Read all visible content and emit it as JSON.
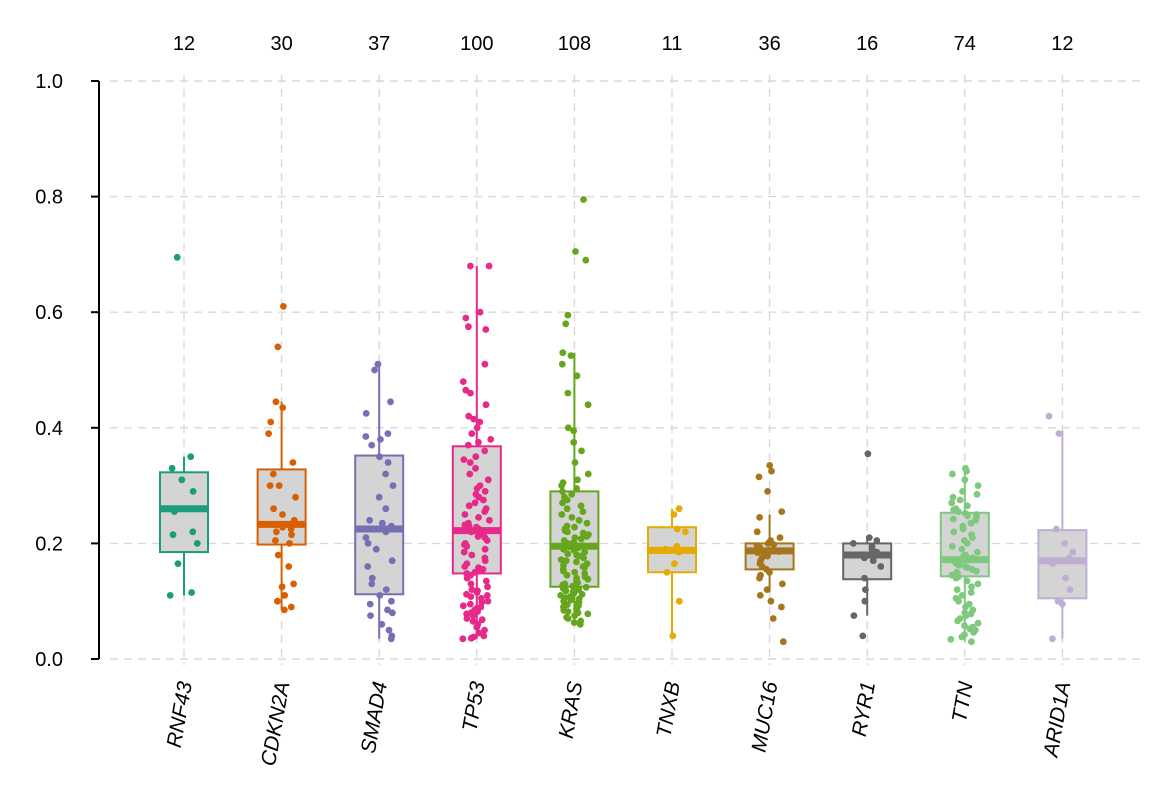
{
  "chart_data": {
    "type": "box",
    "ylim": [
      0,
      1
    ],
    "yticks": [
      "0.0",
      "0.2",
      "0.4",
      "0.6",
      "0.8",
      "1.0"
    ],
    "grid": true,
    "series": [
      {
        "gene": "RNF43",
        "count": "12",
        "color": "#1b9e77",
        "q1": 0.185,
        "median": 0.26,
        "q3": 0.323,
        "whisker_low": 0.11,
        "whisker_high": 0.35,
        "points": [
          0.35,
          0.33,
          0.31,
          0.29,
          0.255,
          0.22,
          0.215,
          0.2,
          0.165,
          0.115,
          0.11,
          0.695
        ]
      },
      {
        "gene": "CDKN2A",
        "count": "30",
        "color": "#d95f02",
        "q1": 0.198,
        "median": 0.233,
        "q3": 0.328,
        "whisker_low": 0.085,
        "whisker_high": 0.445,
        "points": [
          0.61,
          0.54,
          0.445,
          0.435,
          0.41,
          0.39,
          0.34,
          0.32,
          0.3,
          0.28,
          0.26,
          0.25,
          0.24,
          0.235,
          0.232,
          0.228,
          0.225,
          0.22,
          0.215,
          0.205,
          0.2,
          0.18,
          0.16,
          0.13,
          0.125,
          0.11,
          0.1,
          0.09,
          0.085,
          0.3
        ]
      },
      {
        "gene": "SMAD4",
        "count": "37",
        "color": "#7570b3",
        "q1": 0.112,
        "median": 0.225,
        "q3": 0.352,
        "whisker_low": 0.035,
        "whisker_high": 0.51,
        "points": [
          0.51,
          0.5,
          0.445,
          0.425,
          0.39,
          0.385,
          0.38,
          0.37,
          0.35,
          0.34,
          0.32,
          0.3,
          0.28,
          0.26,
          0.24,
          0.235,
          0.23,
          0.225,
          0.22,
          0.21,
          0.2,
          0.19,
          0.17,
          0.16,
          0.14,
          0.13,
          0.12,
          0.11,
          0.1,
          0.095,
          0.085,
          0.08,
          0.075,
          0.06,
          0.05,
          0.04,
          0.035
        ]
      },
      {
        "gene": "TP53",
        "count": "100",
        "color": "#e7298a",
        "q1": 0.148,
        "median": 0.222,
        "q3": 0.368,
        "whisker_low": 0.035,
        "whisker_high": 0.68,
        "points": [
          0.68,
          0.68,
          0.6,
          0.59,
          0.575,
          0.57,
          0.51,
          0.48,
          0.465,
          0.46,
          0.44,
          0.42,
          0.415,
          0.41,
          0.4,
          0.39,
          0.38,
          0.375,
          0.37,
          0.36,
          0.35,
          0.345,
          0.34,
          0.33,
          0.32,
          0.31,
          0.3,
          0.295,
          0.29,
          0.285,
          0.28,
          0.275,
          0.27,
          0.265,
          0.26,
          0.255,
          0.25,
          0.245,
          0.24,
          0.235,
          0.232,
          0.23,
          0.228,
          0.225,
          0.222,
          0.22,
          0.218,
          0.215,
          0.212,
          0.21,
          0.205,
          0.2,
          0.198,
          0.195,
          0.19,
          0.185,
          0.18,
          0.175,
          0.17,
          0.165,
          0.16,
          0.158,
          0.155,
          0.152,
          0.15,
          0.148,
          0.145,
          0.14,
          0.135,
          0.13,
          0.125,
          0.12,
          0.118,
          0.115,
          0.112,
          0.11,
          0.108,
          0.105,
          0.1,
          0.098,
          0.095,
          0.092,
          0.09,
          0.088,
          0.085,
          0.082,
          0.08,
          0.078,
          0.075,
          0.07,
          0.068,
          0.065,
          0.06,
          0.055,
          0.05,
          0.045,
          0.04,
          0.038,
          0.036,
          0.035
        ]
      },
      {
        "gene": "KRAS",
        "count": "108",
        "color": "#66a61e",
        "q1": 0.125,
        "median": 0.195,
        "q3": 0.29,
        "whisker_low": 0.06,
        "whisker_high": 0.53,
        "points": [
          0.795,
          0.705,
          0.69,
          0.595,
          0.58,
          0.53,
          0.525,
          0.51,
          0.49,
          0.46,
          0.44,
          0.4,
          0.395,
          0.375,
          0.36,
          0.34,
          0.32,
          0.31,
          0.305,
          0.3,
          0.295,
          0.29,
          0.285,
          0.28,
          0.275,
          0.27,
          0.265,
          0.26,
          0.255,
          0.25,
          0.245,
          0.24,
          0.235,
          0.23,
          0.228,
          0.225,
          0.222,
          0.22,
          0.218,
          0.215,
          0.212,
          0.21,
          0.208,
          0.205,
          0.202,
          0.2,
          0.198,
          0.196,
          0.195,
          0.194,
          0.192,
          0.19,
          0.188,
          0.185,
          0.182,
          0.18,
          0.178,
          0.175,
          0.172,
          0.17,
          0.168,
          0.165,
          0.162,
          0.16,
          0.158,
          0.155,
          0.152,
          0.15,
          0.148,
          0.145,
          0.142,
          0.14,
          0.138,
          0.135,
          0.132,
          0.13,
          0.128,
          0.126,
          0.124,
          0.122,
          0.12,
          0.118,
          0.116,
          0.114,
          0.112,
          0.11,
          0.108,
          0.106,
          0.104,
          0.102,
          0.1,
          0.098,
          0.096,
          0.094,
          0.092,
          0.09,
          0.088,
          0.086,
          0.084,
          0.082,
          0.08,
          0.078,
          0.075,
          0.072,
          0.07,
          0.066,
          0.063,
          0.06
        ]
      },
      {
        "gene": "TNXB",
        "count": "11",
        "color": "#e6ab02",
        "q1": 0.15,
        "median": 0.188,
        "q3": 0.228,
        "whisker_low": 0.04,
        "whisker_high": 0.26,
        "points": [
          0.26,
          0.25,
          0.225,
          0.22,
          0.195,
          0.19,
          0.185,
          0.165,
          0.15,
          0.1,
          0.04
        ]
      },
      {
        "gene": "MUC16",
        "count": "36",
        "color": "#a6761d",
        "q1": 0.155,
        "median": 0.187,
        "q3": 0.2,
        "whisker_low": 0.115,
        "whisker_high": 0.25,
        "points": [
          0.335,
          0.325,
          0.315,
          0.29,
          0.255,
          0.245,
          0.22,
          0.21,
          0.205,
          0.2,
          0.198,
          0.196,
          0.194,
          0.192,
          0.19,
          0.188,
          0.186,
          0.184,
          0.182,
          0.18,
          0.178,
          0.175,
          0.17,
          0.165,
          0.16,
          0.155,
          0.15,
          0.145,
          0.14,
          0.13,
          0.12,
          0.11,
          0.1,
          0.09,
          0.07,
          0.03
        ]
      },
      {
        "gene": "RYR1",
        "count": "16",
        "color": "#666666",
        "q1": 0.138,
        "median": 0.18,
        "q3": 0.2,
        "whisker_low": 0.075,
        "whisker_high": 0.21,
        "points": [
          0.355,
          0.21,
          0.205,
          0.2,
          0.195,
          0.19,
          0.185,
          0.18,
          0.175,
          0.17,
          0.16,
          0.14,
          0.12,
          0.1,
          0.075,
          0.04
        ]
      },
      {
        "gene": "TTN",
        "count": "74",
        "color": "#7fc97f",
        "q1": 0.143,
        "median": 0.172,
        "q3": 0.253,
        "whisker_low": 0.03,
        "whisker_high": 0.33,
        "points": [
          0.33,
          0.325,
          0.32,
          0.31,
          0.3,
          0.29,
          0.285,
          0.28,
          0.275,
          0.27,
          0.265,
          0.26,
          0.258,
          0.255,
          0.252,
          0.25,
          0.248,
          0.245,
          0.242,
          0.24,
          0.235,
          0.23,
          0.225,
          0.22,
          0.215,
          0.21,
          0.205,
          0.2,
          0.195,
          0.19,
          0.185,
          0.18,
          0.178,
          0.175,
          0.172,
          0.17,
          0.168,
          0.165,
          0.162,
          0.16,
          0.158,
          0.155,
          0.152,
          0.15,
          0.148,
          0.145,
          0.142,
          0.14,
          0.135,
          0.13,
          0.125,
          0.12,
          0.115,
          0.11,
          0.105,
          0.1,
          0.095,
          0.09,
          0.085,
          0.08,
          0.078,
          0.075,
          0.07,
          0.066,
          0.062,
          0.058,
          0.055,
          0.052,
          0.05,
          0.046,
          0.042,
          0.038,
          0.034,
          0.03
        ]
      },
      {
        "gene": "ARID1A",
        "count": "12",
        "color": "#beaed4",
        "q1": 0.105,
        "median": 0.17,
        "q3": 0.223,
        "whisker_low": 0.035,
        "whisker_high": 0.395,
        "points": [
          0.42,
          0.39,
          0.225,
          0.2,
          0.185,
          0.175,
          0.165,
          0.14,
          0.12,
          0.1,
          0.095,
          0.035
        ]
      }
    ]
  }
}
